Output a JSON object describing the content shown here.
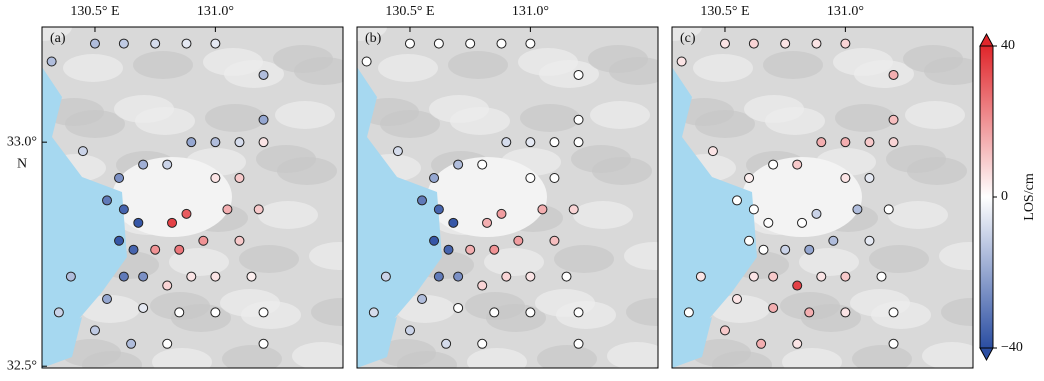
{
  "x_axis": {
    "lim": [
      130.28,
      131.53
    ],
    "ticks": [
      {
        "value": 130.5,
        "label": "130.5° E"
      },
      {
        "value": 131.0,
        "label": "131.0°"
      }
    ]
  },
  "y_axis": {
    "lim": [
      32.496,
      33.257
    ],
    "ticks": [
      {
        "value": 33.0,
        "label": "33.0°"
      },
      {
        "value": 32.5,
        "label": "32.5°"
      }
    ],
    "unit_label": "N"
  },
  "stations": {
    "lon": [
      130.32,
      130.5,
      130.62,
      130.75,
      130.88,
      131.0,
      131.2,
      131.2,
      130.9,
      131.0,
      131.1,
      131.2,
      130.45,
      130.6,
      130.7,
      130.8,
      131.0,
      131.1,
      130.55,
      130.62,
      130.68,
      130.82,
      130.88,
      131.05,
      131.18,
      130.6,
      130.66,
      130.75,
      130.85,
      130.95,
      131.1,
      130.62,
      130.7,
      130.8,
      130.9,
      131.0,
      131.15,
      130.55,
      130.7,
      130.85,
      131.0,
      131.2,
      130.5,
      130.65,
      130.8,
      131.2,
      130.4,
      130.35
    ],
    "lat": [
      33.18,
      33.22,
      33.22,
      33.22,
      33.22,
      33.22,
      33.15,
      33.05,
      33.0,
      33.0,
      33.0,
      33.0,
      32.98,
      32.92,
      32.95,
      32.95,
      32.92,
      32.92,
      32.87,
      32.85,
      32.82,
      32.82,
      32.84,
      32.85,
      32.85,
      32.78,
      32.76,
      32.76,
      32.76,
      32.78,
      32.78,
      32.7,
      32.7,
      32.68,
      32.7,
      32.7,
      32.7,
      32.65,
      32.63,
      32.62,
      32.62,
      32.62,
      32.58,
      32.55,
      32.55,
      32.55,
      32.7,
      32.62
    ]
  },
  "panels": [
    {
      "label": "(a)",
      "values": [
        -15,
        -15,
        -12,
        -8,
        -5,
        -5,
        -15,
        -20,
        -20,
        -15,
        -8,
        5,
        -10,
        -25,
        -18,
        -10,
        5,
        10,
        -30,
        -35,
        -38,
        35,
        30,
        15,
        10,
        -38,
        -35,
        20,
        25,
        20,
        10,
        -30,
        -25,
        8,
        5,
        5,
        3,
        -20,
        -5,
        0,
        0,
        0,
        -12,
        -15,
        0,
        0,
        -15,
        -10
      ]
    },
    {
      "label": "(b)",
      "values": [
        0,
        0,
        0,
        0,
        0,
        0,
        0,
        0,
        -8,
        -5,
        0,
        0,
        -8,
        -20,
        -15,
        0,
        0,
        0,
        -30,
        -35,
        -38,
        15,
        18,
        15,
        8,
        -38,
        -35,
        15,
        20,
        18,
        12,
        -30,
        -25,
        8,
        8,
        5,
        0,
        -15,
        0,
        0,
        0,
        0,
        -10,
        -8,
        0,
        0,
        -10,
        -8
      ]
    },
    {
      "label": "(c)",
      "values": [
        5,
        5,
        8,
        5,
        5,
        8,
        15,
        12,
        15,
        15,
        10,
        8,
        5,
        3,
        0,
        10,
        5,
        -5,
        0,
        0,
        0,
        0,
        -10,
        -15,
        0,
        0,
        0,
        -10,
        -20,
        -15,
        -5,
        5,
        10,
        35,
        5,
        10,
        0,
        5,
        15,
        15,
        5,
        0,
        10,
        15,
        5,
        0,
        5,
        0
      ]
    }
  ],
  "colorbar": {
    "lim": [
      -40,
      40
    ],
    "ticks": [
      40,
      0,
      {
        "value": -40,
        "label": "−40"
      }
    ],
    "label": "LOS/cm"
  }
}
